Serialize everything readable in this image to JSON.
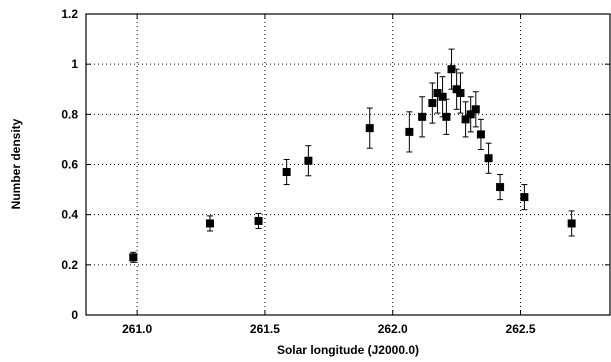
{
  "chart_data": {
    "type": "scatter",
    "title": "",
    "xlabel": "Solar longitude (J2000.0)",
    "ylabel": "Number density",
    "xlim": [
      260.8,
      262.85
    ],
    "ylim": [
      0,
      1.2
    ],
    "x_ticks": [
      "261.0",
      "261.5",
      "262.0",
      "262.5"
    ],
    "x_tick_values": [
      261.0,
      261.5,
      262.0,
      262.5
    ],
    "y_ticks": [
      "0",
      "0.2",
      "0.4",
      "0.6",
      "0.8",
      "1",
      "1.2"
    ],
    "y_tick_values": [
      0,
      0.2,
      0.4,
      0.6,
      0.8,
      1.0,
      1.2
    ],
    "grid": true,
    "error_bars": true,
    "points": [
      {
        "x": 260.985,
        "y": 0.23,
        "err": 0.02
      },
      {
        "x": 261.285,
        "y": 0.365,
        "err": 0.03
      },
      {
        "x": 261.475,
        "y": 0.375,
        "err": 0.03
      },
      {
        "x": 261.585,
        "y": 0.57,
        "err": 0.05
      },
      {
        "x": 261.67,
        "y": 0.615,
        "err": 0.06
      },
      {
        "x": 261.91,
        "y": 0.745,
        "err": 0.08
      },
      {
        "x": 262.065,
        "y": 0.73,
        "err": 0.08
      },
      {
        "x": 262.115,
        "y": 0.79,
        "err": 0.08
      },
      {
        "x": 262.155,
        "y": 0.845,
        "err": 0.08
      },
      {
        "x": 262.175,
        "y": 0.885,
        "err": 0.08
      },
      {
        "x": 262.195,
        "y": 0.87,
        "err": 0.08
      },
      {
        "x": 262.21,
        "y": 0.79,
        "err": 0.07
      },
      {
        "x": 262.23,
        "y": 0.98,
        "err": 0.08
      },
      {
        "x": 262.25,
        "y": 0.9,
        "err": 0.08
      },
      {
        "x": 262.265,
        "y": 0.885,
        "err": 0.08
      },
      {
        "x": 262.285,
        "y": 0.78,
        "err": 0.07
      },
      {
        "x": 262.305,
        "y": 0.8,
        "err": 0.07
      },
      {
        "x": 262.325,
        "y": 0.82,
        "err": 0.07
      },
      {
        "x": 262.345,
        "y": 0.72,
        "err": 0.06
      },
      {
        "x": 262.375,
        "y": 0.625,
        "err": 0.06
      },
      {
        "x": 262.42,
        "y": 0.51,
        "err": 0.05
      },
      {
        "x": 262.515,
        "y": 0.47,
        "err": 0.05
      },
      {
        "x": 262.7,
        "y": 0.365,
        "err": 0.05
      }
    ]
  }
}
